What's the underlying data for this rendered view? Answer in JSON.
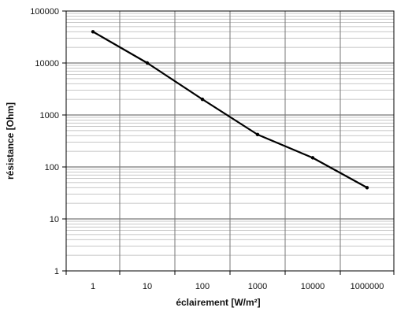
{
  "chart_data": {
    "type": "line",
    "title": "",
    "xlabel": "éclairement [W/m²]",
    "ylabel": "résistance [Ohm]",
    "x_scale": "log",
    "y_scale": "log",
    "x_tick_labels": [
      "1",
      "10",
      "100",
      "1000",
      "10000",
      "1000000"
    ],
    "y_tick_labels": [
      "1",
      "10",
      "100",
      "1000",
      "10000",
      "100000"
    ],
    "ylim": [
      1,
      100000
    ],
    "grid": true,
    "legend": "none",
    "line_color": "#000000",
    "series": [
      {
        "x": [
          "1",
          "10",
          "100",
          "1000",
          "10000",
          "1000000"
        ],
        "values": [
          40000,
          10000,
          2000,
          420,
          150,
          40
        ]
      }
    ]
  }
}
